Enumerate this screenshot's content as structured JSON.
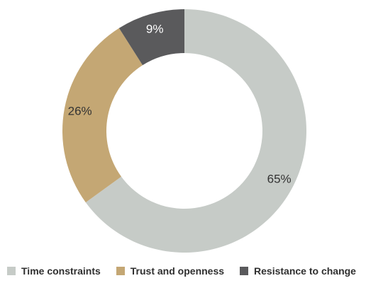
{
  "chart_data": {
    "type": "pie",
    "donut": true,
    "title": "",
    "slices": [
      {
        "label": "Time constraints",
        "value": 65,
        "display": "65%",
        "color": "#c6cbc7",
        "label_color": "#333333"
      },
      {
        "label": "Trust and openness",
        "value": 26,
        "display": "26%",
        "color": "#c4a774",
        "label_color": "#333333"
      },
      {
        "label": "Resistance to change",
        "value": 9,
        "display": "9%",
        "color": "#5a5a5c",
        "label_color": "#ffffff"
      }
    ],
    "start": "12 o'clock",
    "direction": "clockwise",
    "legend_position": "bottom"
  }
}
